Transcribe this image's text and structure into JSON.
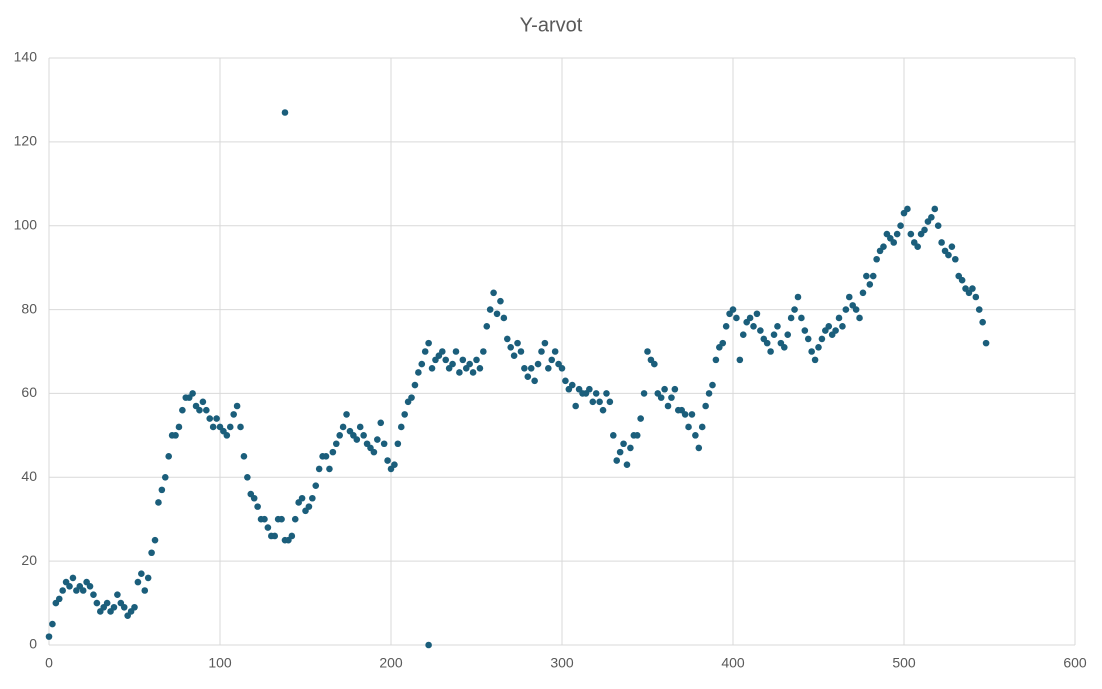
{
  "chart_data": {
    "type": "scatter",
    "title": "Y-arvot",
    "color": "#1b5e7b",
    "grid": true,
    "xlim": [
      0,
      600
    ],
    "xticks": [
      0,
      100,
      200,
      300,
      400,
      500,
      600
    ],
    "ylim": [
      0,
      140
    ],
    "yticks": [
      0,
      20,
      40,
      60,
      80,
      100,
      120,
      140
    ],
    "series": [
      {
        "name": "Y-arvot",
        "color": "#1b5e7b",
        "x": [
          0,
          2,
          4,
          6,
          8,
          10,
          12,
          14,
          16,
          18,
          20,
          22,
          24,
          26,
          28,
          30,
          32,
          34,
          36,
          38,
          40,
          42,
          44,
          46,
          48,
          50,
          52,
          54,
          56,
          58,
          60,
          62,
          64,
          66,
          68,
          70,
          72,
          74,
          76,
          78,
          80,
          82,
          84,
          86,
          88,
          90,
          92,
          94,
          96,
          98,
          100,
          102,
          104,
          106,
          108,
          110,
          112,
          114,
          116,
          118,
          120,
          122,
          124,
          126,
          128,
          130,
          132,
          134,
          136,
          138,
          140,
          142,
          144,
          146,
          148,
          150,
          152,
          154,
          156,
          158,
          160,
          162,
          164,
          166,
          168,
          170,
          172,
          174,
          176,
          178,
          180,
          182,
          184,
          186,
          188,
          190,
          192,
          194,
          196,
          198,
          200,
          202,
          204,
          206,
          208,
          210,
          212,
          214,
          216,
          218,
          220,
          222,
          224,
          226,
          228,
          230,
          232,
          234,
          236,
          238,
          240,
          242,
          244,
          246,
          248,
          250,
          252,
          254,
          256,
          258,
          260,
          262,
          264,
          266,
          268,
          270,
          272,
          274,
          276,
          278,
          280,
          282,
          284,
          286,
          288,
          290,
          292,
          294,
          296,
          298,
          300,
          302,
          304,
          306,
          308,
          310,
          312,
          314,
          316,
          318,
          320,
          322,
          324,
          326,
          328,
          330,
          332,
          334,
          336,
          338,
          340,
          342,
          344,
          346,
          348,
          350,
          352,
          354,
          356,
          358,
          360,
          362,
          364,
          366,
          368,
          370,
          372,
          374,
          376,
          378,
          380,
          382,
          384,
          386,
          388,
          390,
          392,
          394,
          396,
          398,
          400,
          402,
          404,
          406,
          408,
          410,
          412,
          414,
          416,
          418,
          420,
          422,
          424,
          426,
          428,
          430,
          432,
          434,
          436,
          438,
          440,
          442,
          444,
          446,
          448,
          450,
          452,
          454,
          456,
          458,
          460,
          462,
          464,
          466,
          468,
          470,
          472,
          474,
          476,
          478,
          480,
          482,
          484,
          486,
          488,
          490,
          492,
          494,
          496,
          498,
          500,
          502,
          504,
          506,
          508,
          510,
          512,
          514,
          516,
          518,
          520,
          522,
          524,
          526,
          528,
          530,
          532,
          534,
          536,
          538,
          540,
          542,
          544,
          546,
          548,
          138,
          222
        ],
        "values": [
          2,
          5,
          10,
          11,
          13,
          15,
          14,
          16,
          13,
          14,
          13,
          15,
          14,
          12,
          10,
          8,
          9,
          10,
          8,
          9,
          12,
          10,
          9,
          7,
          8,
          9,
          15,
          17,
          13,
          16,
          22,
          25,
          34,
          37,
          40,
          45,
          50,
          50,
          52,
          56,
          59,
          59,
          60,
          57,
          56,
          58,
          56,
          54,
          52,
          54,
          52,
          51,
          50,
          52,
          55,
          57,
          52,
          45,
          40,
          36,
          35,
          33,
          30,
          30,
          28,
          26,
          26,
          30,
          30,
          25,
          25,
          26,
          30,
          34,
          35,
          32,
          33,
          35,
          38,
          42,
          45,
          45,
          42,
          46,
          48,
          50,
          52,
          55,
          51,
          50,
          49,
          52,
          50,
          48,
          47,
          46,
          49,
          53,
          48,
          44,
          42,
          43,
          48,
          52,
          55,
          58,
          59,
          62,
          65,
          67,
          70,
          72,
          66,
          68,
          69,
          70,
          68,
          66,
          67,
          70,
          65,
          68,
          66,
          67,
          65,
          68,
          66,
          70,
          76,
          80,
          84,
          79,
          82,
          78,
          73,
          71,
          69,
          72,
          70,
          66,
          64,
          66,
          63,
          67,
          70,
          72,
          66,
          68,
          70,
          67,
          66,
          63,
          61,
          62,
          57,
          61,
          60,
          60,
          61,
          58,
          60,
          58,
          56,
          60,
          58,
          50,
          44,
          46,
          48,
          43,
          47,
          50,
          50,
          54,
          60,
          70,
          68,
          67,
          60,
          59,
          61,
          57,
          59,
          61,
          56,
          56,
          55,
          52,
          55,
          50,
          47,
          52,
          57,
          60,
          62,
          68,
          71,
          72,
          76,
          79,
          80,
          78,
          68,
          74,
          77,
          78,
          76,
          79,
          75,
          73,
          72,
          70,
          74,
          76,
          72,
          71,
          74,
          78,
          80,
          83,
          78,
          75,
          73,
          70,
          68,
          71,
          73,
          75,
          76,
          74,
          75,
          78,
          76,
          80,
          83,
          81,
          80,
          78,
          84,
          88,
          86,
          88,
          92,
          94,
          95,
          98,
          97,
          96,
          98,
          100,
          103,
          104,
          98,
          96,
          95,
          98,
          99,
          101,
          102,
          104,
          100,
          96,
          94,
          93,
          95,
          92,
          88,
          87,
          85,
          84,
          85,
          83,
          80,
          77,
          72,
          127,
          0
        ]
      }
    ]
  }
}
